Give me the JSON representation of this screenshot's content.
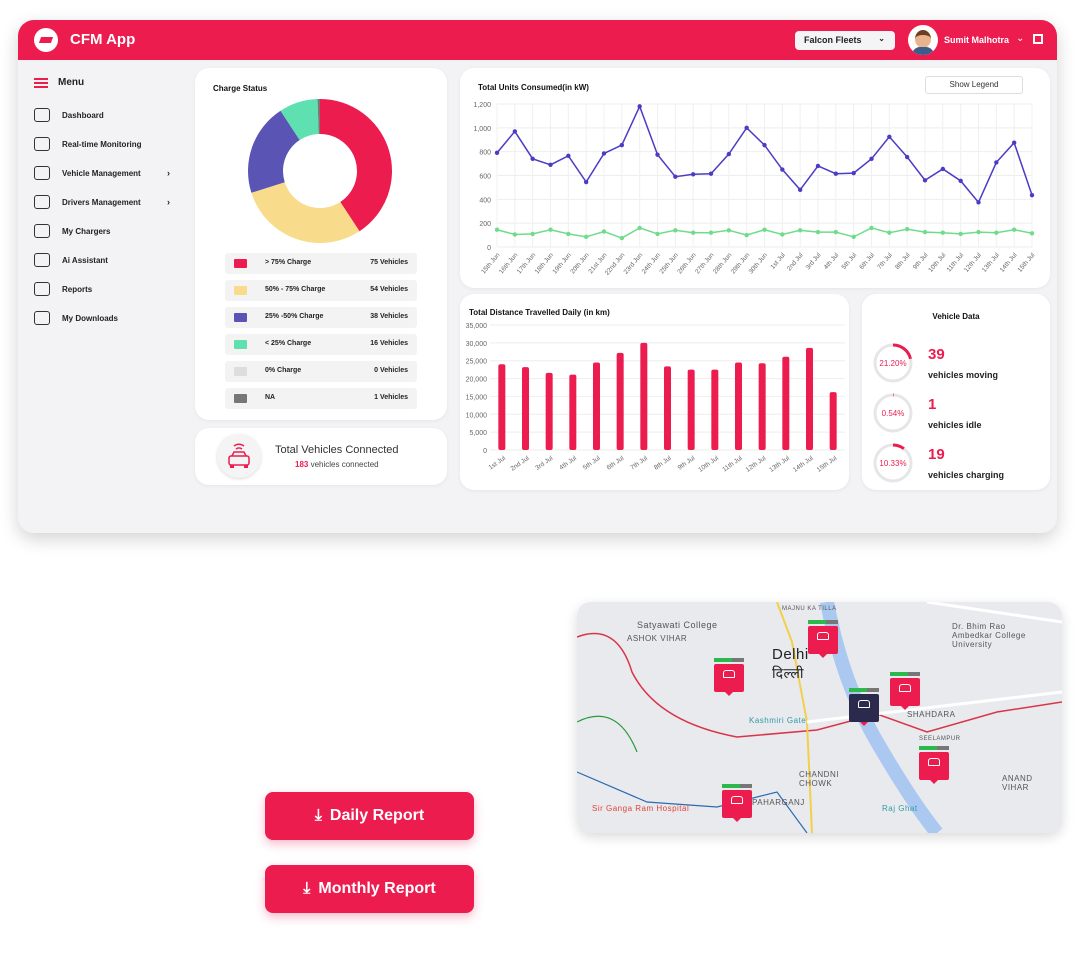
{
  "header": {
    "app_title": "CFM App",
    "fleet_select": "Falcon Fleets",
    "user_name": "Sumit Malhotra"
  },
  "sidebar": {
    "menu_label": "Menu",
    "items": [
      {
        "label": "Dashboard",
        "icon": "speedometer-icon"
      },
      {
        "label": "Real-time Monitoring",
        "icon": "monitoring-icon"
      },
      {
        "label": "Vehicle Management",
        "icon": "vehicle-gear-icon",
        "has_submenu": true
      },
      {
        "label": "Drivers Management",
        "icon": "driver-icon",
        "has_submenu": true
      },
      {
        "label": "My Chargers",
        "icon": "charger-icon"
      },
      {
        "label": "Ai Assistant",
        "icon": "robot-icon"
      },
      {
        "label": "Reports",
        "icon": "report-icon"
      },
      {
        "label": "My Downloads",
        "icon": "download-icon"
      }
    ]
  },
  "charge_status": {
    "title": "Charge Status",
    "legend": [
      {
        "label": "> 75% Charge",
        "count": "75 Vehicles",
        "value": 75,
        "color": "#ec1c4f"
      },
      {
        "label": "50% - 75% Charge",
        "count": "54 Vehicles",
        "value": 54,
        "color": "#f8dc8c"
      },
      {
        "label": "25% -50% Charge",
        "count": "38 Vehicles",
        "value": 38,
        "color": "#5a55b5"
      },
      {
        "label": "< 25% Charge",
        "count": "16 Vehicles",
        "value": 16,
        "color": "#5ee0b0"
      },
      {
        "label": "0% Charge",
        "count": "0 Vehicles",
        "value": 0,
        "color": "#dddddd"
      },
      {
        "label": "NA",
        "count": "1 Vehicles",
        "value": 1,
        "color": "#777777"
      }
    ]
  },
  "connected": {
    "title": "Total Vehicles Connected",
    "count": "183",
    "suffix": " vehicles connected"
  },
  "chart_data": [
    {
      "type": "line",
      "title": "Total Units Consumed(in kW)",
      "legend_button": "Show Legend",
      "ylim": [
        0,
        1200
      ],
      "yticks": [
        "0",
        "200",
        "400",
        "600",
        "800",
        "1,000",
        "1,200"
      ],
      "categories": [
        "15th Jun",
        "16th Jun",
        "17th Jun",
        "18th Jun",
        "19th Jun",
        "20th Jun",
        "21st Jun",
        "22nd Jun",
        "23rd Jun",
        "24th Jun",
        "25th Jun",
        "26th Jun",
        "27th Jun",
        "28th Jun",
        "29th Jun",
        "30th Jun",
        "1st Jul",
        "2nd Jul",
        "3rd Jul",
        "4th Jul",
        "5th Jul",
        "6th Jul",
        "7th Jul",
        "8th Jul",
        "9th Jul",
        "10th Jul",
        "11th Jul",
        "12th Jul",
        "13th Jul",
        "14th Jul",
        "15th Jul"
      ],
      "series": [
        {
          "color": "#4b3cc4",
          "values": [
            790,
            970,
            740,
            690,
            765,
            545,
            785,
            855,
            1180,
            775,
            590,
            610,
            615,
            780,
            1000,
            855,
            650,
            480,
            680,
            615,
            620,
            740,
            925,
            755,
            560,
            655,
            555,
            375,
            710,
            875,
            435
          ]
        },
        {
          "color": "#6fdc8c",
          "values": [
            145,
            105,
            110,
            145,
            110,
            85,
            130,
            75,
            160,
            110,
            140,
            120,
            120,
            140,
            100,
            145,
            105,
            140,
            125,
            125,
            85,
            160,
            120,
            150,
            125,
            120,
            110,
            125,
            120,
            145,
            115
          ]
        }
      ],
      "grid": true
    },
    {
      "type": "bar",
      "title": "Total Distance Travelled Daily (in km)",
      "ylim": [
        0,
        35000
      ],
      "yticks": [
        "0",
        "5,000",
        "10,000",
        "15,000",
        "20,000",
        "25,000",
        "30,000",
        "35,000"
      ],
      "categories": [
        "1st Jul",
        "2nd Jul",
        "3rd Jul",
        "4th Jul",
        "5th Jul",
        "6th Jul",
        "7th Jul",
        "8th Jul",
        "9th Jul",
        "10th Jul",
        "11th Jul",
        "12th Jul",
        "13th Jul",
        "14th Jul",
        "15th Jul"
      ],
      "values": [
        24000,
        23200,
        21600,
        21100,
        24500,
        27200,
        30000,
        23400,
        22500,
        22500,
        24500,
        24300,
        26100,
        28600,
        16200
      ],
      "color": "#ec1c4f",
      "grid": true
    }
  ],
  "vehicle_data": {
    "title": "Vehicle Data",
    "items": [
      {
        "percent": "21.20%",
        "fraction": 0.212,
        "count": "39",
        "label": "vehicles moving"
      },
      {
        "percent": "0.54%",
        "fraction": 0.0054,
        "count": "1",
        "label": "vehicles idle"
      },
      {
        "percent": "10.33%",
        "fraction": 0.1033,
        "count": "19",
        "label": "vehicles charging"
      }
    ]
  },
  "reports": {
    "daily": "Daily Report",
    "monthly": "Monthly Report"
  },
  "map": {
    "labels": [
      "Satyawati College",
      "ASHOK VIHAR",
      "Delhi",
      "दिल्ली",
      "MAJNU KA TILLA",
      "Kashmiri Gate",
      "SHAHDARA",
      "SEELAMPUR",
      "CHANDNI CHOWK",
      "PAHARGANJ",
      "Sir Ganga Ram Hospital",
      "Raj Ghat",
      "ANAND VIHAR",
      "Dr. Bhim Rao Ambedkar College University"
    ]
  }
}
